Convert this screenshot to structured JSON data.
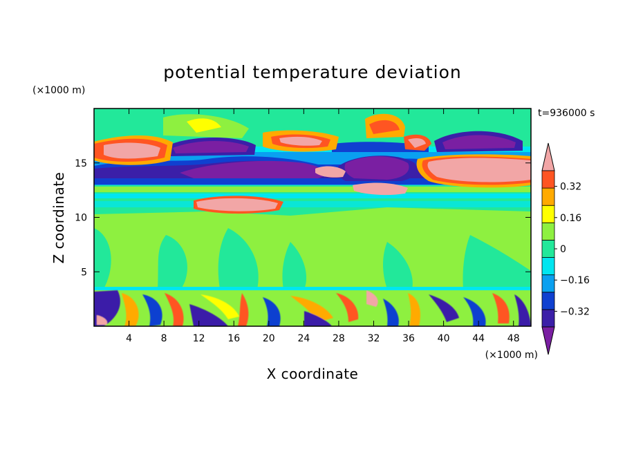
{
  "chart_data": {
    "type": "heatmap",
    "title": "potential temperature deviation",
    "xlabel": "X coordinate",
    "ylabel": "Z coordinate",
    "x_unit": "(×1000 m)",
    "y_unit": "(×1000 m)",
    "time_label": "t=936000 s",
    "xlim": [
      0,
      50
    ],
    "ylim": [
      0,
      20
    ],
    "x_ticks": [
      "4",
      "8",
      "12",
      "16",
      "20",
      "24",
      "28",
      "32",
      "36",
      "40",
      "44",
      "48"
    ],
    "y_ticks": [
      "5",
      "10",
      "15"
    ],
    "colorbar": {
      "levels": [
        -0.4,
        -0.32,
        -0.24,
        -0.16,
        -0.08,
        0,
        0.08,
        0.16,
        0.24,
        0.32,
        0.4
      ],
      "labels": [
        "0.32",
        "0.16",
        "0",
        "−0.16",
        "−0.32"
      ],
      "colors": [
        "#7a1fa2",
        "#3b1fa8",
        "#1040d0",
        "#0aa0f0",
        "#00e6f0",
        "#22e89a",
        "#8ef040",
        "#ffff00",
        "#ffaa00",
        "#ff5522",
        "#f2a6a6"
      ]
    },
    "regions": [
      {
        "z": "12-17",
        "description": "upper layer with strong positive (pink) and negative (purple) anomalies"
      },
      {
        "z": "3.5-11",
        "description": "mid layer near zero (green)"
      },
      {
        "z": "0-3.5",
        "description": "lower layer with mixed small-scale anomalies"
      }
    ]
  }
}
